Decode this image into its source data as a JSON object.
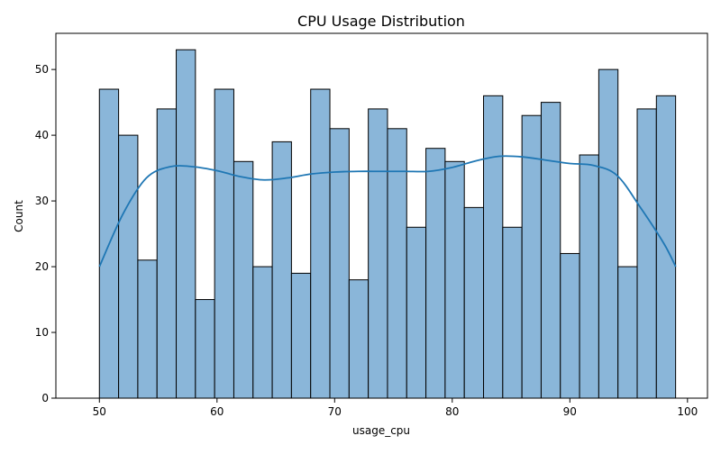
{
  "chart_data": {
    "type": "bar",
    "title": "CPU Usage Distribution",
    "xlabel": "usage_cpu",
    "ylabel": "Count",
    "xlim": [
      46.3,
      101.7
    ],
    "ylim": [
      0,
      55.5
    ],
    "xticks": [
      50,
      60,
      70,
      80,
      90,
      100
    ],
    "yticks": [
      0,
      10,
      20,
      30,
      40,
      50
    ],
    "bin_start": 50,
    "bin_width": 1.633,
    "values": [
      47,
      40,
      21,
      44,
      53,
      15,
      47,
      36,
      20,
      39,
      19,
      47,
      41,
      18,
      44,
      41,
      26,
      38,
      36,
      29,
      46,
      26,
      43,
      45,
      22,
      37,
      50,
      20,
      44,
      46
    ],
    "kde": {
      "x": [
        50,
        52,
        54,
        56,
        58,
        60,
        62,
        64,
        66,
        68,
        70,
        72,
        74,
        76,
        78,
        80,
        82,
        84,
        86,
        88,
        90,
        92,
        94,
        96,
        98,
        99
      ],
      "y": [
        20,
        28,
        33.5,
        35.2,
        35.2,
        34.6,
        33.7,
        33.2,
        33.5,
        34.1,
        34.4,
        34.5,
        34.5,
        34.5,
        34.5,
        35.1,
        36.1,
        36.8,
        36.7,
        36.2,
        35.7,
        35.4,
        33.9,
        29,
        23.5,
        20
      ]
    },
    "colors": {
      "bar_fill": "#8ab6d9",
      "bar_edge": "#000000",
      "kde_line": "#1f77b4"
    },
    "grid": false,
    "legend": "none"
  }
}
